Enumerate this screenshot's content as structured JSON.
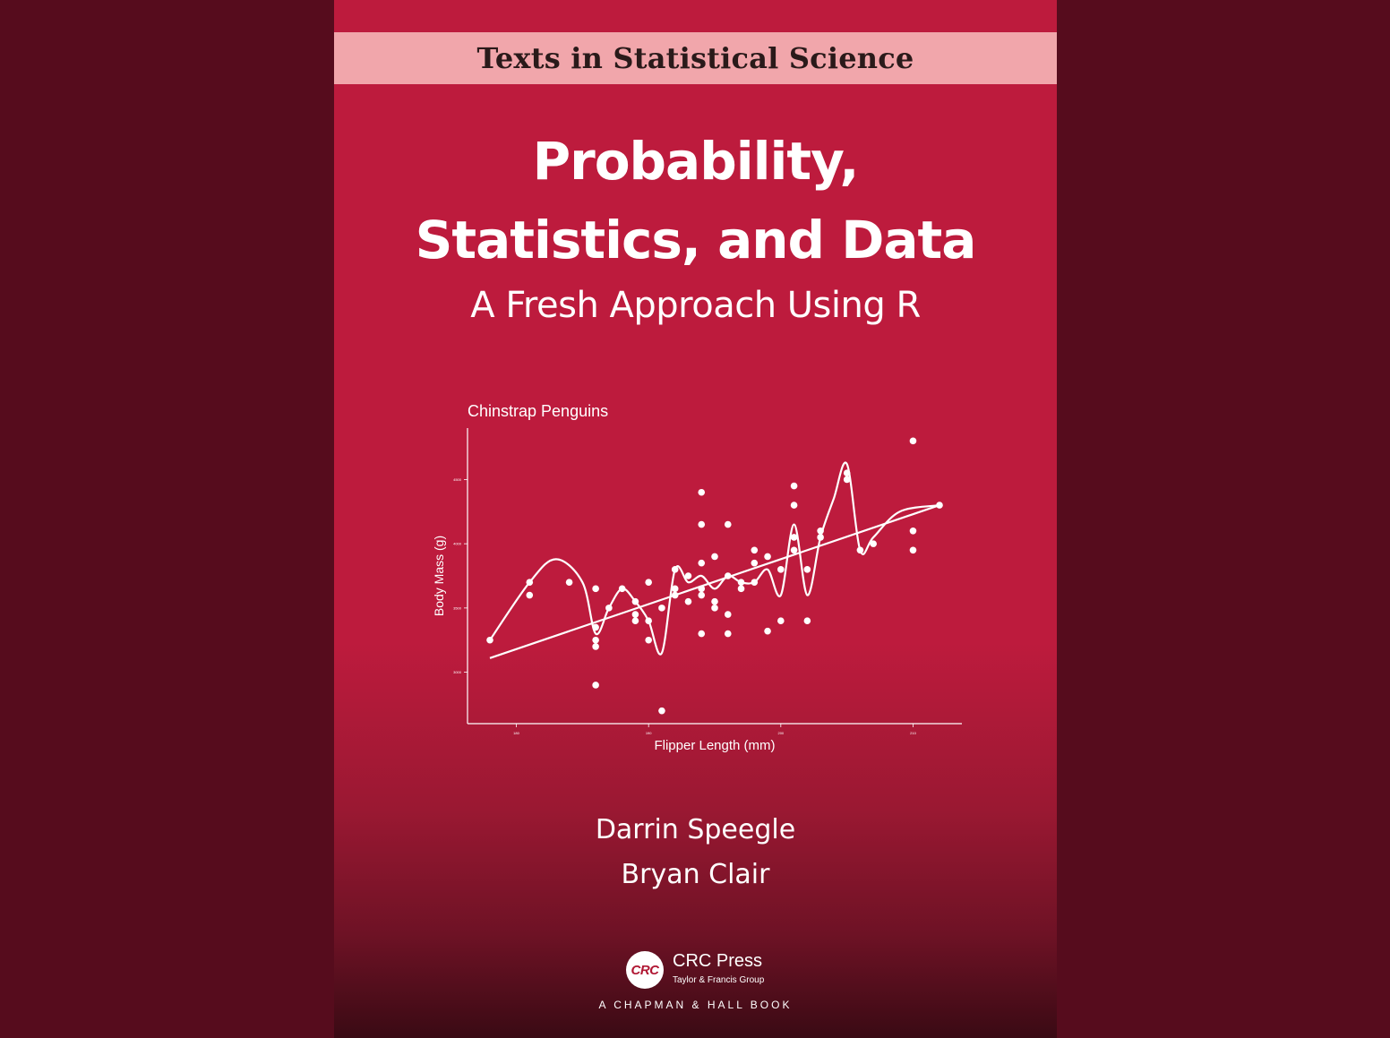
{
  "cover": {
    "series": "Texts in Statistical Science",
    "title_line_1": "Probability,",
    "title_line_2": "Statistics, and Data",
    "subtitle": "A Fresh Approach Using R",
    "authors": [
      "Darrin Speegle",
      "Bryan Clair"
    ],
    "publisher": {
      "logo_text": "CRC",
      "name": "CRC Press",
      "group": "Taylor & Francis Group",
      "imprint": "A CHAPMAN & HALL BOOK"
    },
    "colors": {
      "page_background": "#560c1d",
      "cover_red": "#bd1b3d",
      "series_band": "#f1a6ab"
    }
  },
  "chart_data": {
    "type": "scatter",
    "title": "Chinstrap Penguins",
    "xlabel": "Flipper Length (mm)",
    "ylabel": "Body Mass (g)",
    "xlim": [
      176,
      213
    ],
    "ylim": [
      2600,
      4900
    ],
    "x_ticks": [
      180,
      190,
      200,
      210
    ],
    "y_ticks": [
      3000,
      3500,
      4000,
      4500
    ],
    "points": [
      [
        178,
        3250
      ],
      [
        181,
        3700
      ],
      [
        181,
        3600
      ],
      [
        184,
        3700
      ],
      [
        186,
        3650
      ],
      [
        186,
        3350
      ],
      [
        186,
        3250
      ],
      [
        186,
        3200
      ],
      [
        186,
        2900
      ],
      [
        187,
        3500
      ],
      [
        188,
        3650
      ],
      [
        189,
        3550
      ],
      [
        189,
        3450
      ],
      [
        189,
        3400
      ],
      [
        190,
        3700
      ],
      [
        190,
        3400
      ],
      [
        190,
        3250
      ],
      [
        191,
        3500
      ],
      [
        191,
        2700
      ],
      [
        192,
        3800
      ],
      [
        192,
        3650
      ],
      [
        192,
        3600
      ],
      [
        193,
        3750
      ],
      [
        193,
        3550
      ],
      [
        194,
        4400
      ],
      [
        194,
        4150
      ],
      [
        194,
        3850
      ],
      [
        194,
        3650
      ],
      [
        194,
        3600
      ],
      [
        194,
        3300
      ],
      [
        195,
        3900
      ],
      [
        195,
        3550
      ],
      [
        195,
        3500
      ],
      [
        196,
        4150
      ],
      [
        196,
        3750
      ],
      [
        196,
        3450
      ],
      [
        196,
        3300
      ],
      [
        197,
        3700
      ],
      [
        197,
        3650
      ],
      [
        198,
        3950
      ],
      [
        198,
        3700
      ],
      [
        198,
        3850
      ],
      [
        199,
        3900
      ],
      [
        199,
        3320
      ],
      [
        200,
        3800
      ],
      [
        200,
        3400
      ],
      [
        201,
        4450
      ],
      [
        201,
        4300
      ],
      [
        201,
        4050
      ],
      [
        201,
        3950
      ],
      [
        202,
        3800
      ],
      [
        202,
        3400
      ],
      [
        203,
        4100
      ],
      [
        203,
        4050
      ],
      [
        205,
        4550
      ],
      [
        205,
        4500
      ],
      [
        206,
        3950
      ],
      [
        207,
        4000
      ],
      [
        210,
        4800
      ],
      [
        210,
        4100
      ],
      [
        210,
        3950
      ],
      [
        212,
        4300
      ]
    ],
    "lines": [
      {
        "type": "linear-fit",
        "x": [
          178,
          212
        ],
        "y": [
          3110,
          4300
        ]
      },
      {
        "type": "smooth-interpolation",
        "x": [
          178,
          181,
          183,
          185,
          186,
          187,
          188,
          189,
          190,
          191,
          192,
          193,
          194,
          195,
          196,
          197,
          198,
          199,
          200,
          201,
          202,
          203,
          204,
          205,
          206,
          207,
          209,
          212
        ],
        "y": [
          3250,
          3700,
          3880,
          3700,
          3300,
          3500,
          3650,
          3550,
          3400,
          3150,
          3800,
          3700,
          3750,
          3650,
          3750,
          3700,
          3700,
          3800,
          3600,
          4150,
          3600,
          4050,
          4350,
          4620,
          3950,
          4050,
          4250,
          4300
        ]
      }
    ],
    "grid": false
  }
}
